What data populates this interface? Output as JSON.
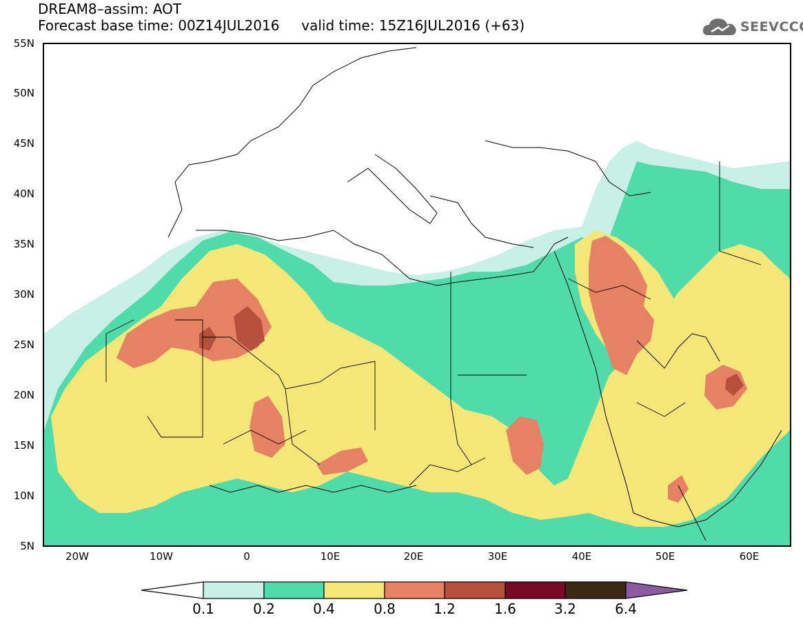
{
  "header": {
    "title_line1": "DREAM8–assim: AOT",
    "title_line2": "Forecast base time: 00Z14JUL2016     valid time: 15Z16JUL2016 (+63)"
  },
  "logo": {
    "icon": "cloud-icon",
    "text": "SEEVCCC"
  },
  "map": {
    "projection": "lat-lon",
    "lon_range": [
      -25,
      65
    ],
    "lat_range": [
      5,
      55
    ],
    "lat_ticks": [
      "55N",
      "50N",
      "45N",
      "40N",
      "35N",
      "30N",
      "25N",
      "20N",
      "15N",
      "10N",
      "5N"
    ],
    "lon_ticks": [
      "20W",
      "10W",
      "0",
      "10E",
      "20E",
      "30E",
      "40E",
      "50E",
      "60E"
    ],
    "region": "North Africa, Mediterranean, Middle East, Arabian Peninsula"
  },
  "colorbar": {
    "labels": [
      "0.1",
      "0.2",
      "0.4",
      "0.8",
      "1.2",
      "1.6",
      "3.2",
      "6.4"
    ],
    "colors": [
      "#ffffff",
      "#c8f0e6",
      "#50dcaa",
      "#f5e678",
      "#e68264",
      "#b4503c",
      "#780a28",
      "#3c2814",
      "#8c5aa0"
    ]
  }
}
